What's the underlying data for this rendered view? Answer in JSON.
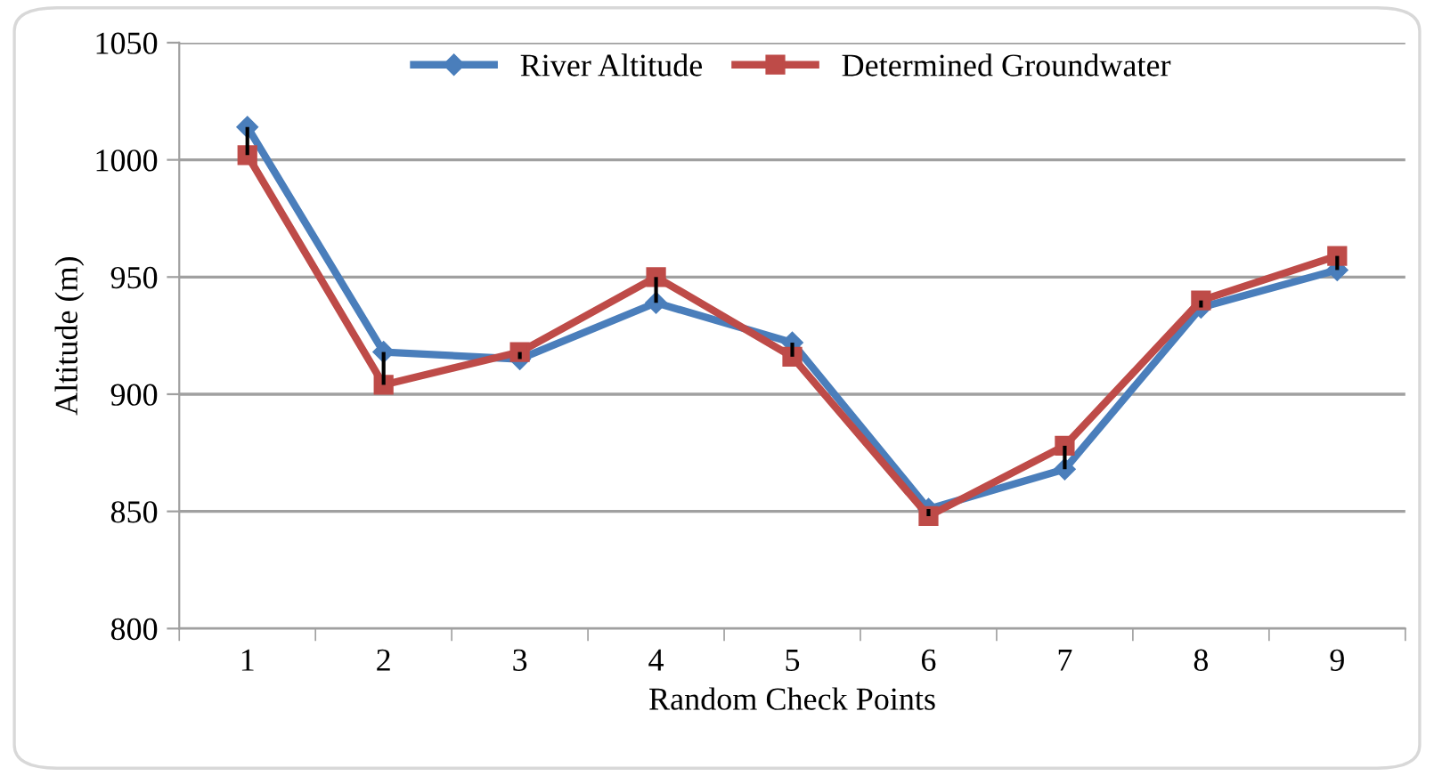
{
  "chart_data": {
    "type": "line",
    "xlabel": "Random Check Points",
    "ylabel": "Altitude (m)",
    "categories": [
      "1",
      "2",
      "3",
      "4",
      "5",
      "6",
      "7",
      "8",
      "9"
    ],
    "series": [
      {
        "name": "River Altitude",
        "color": "#4a7ebb",
        "marker": "diamond",
        "values": [
          1014,
          918,
          915,
          939,
          922,
          851,
          868,
          937,
          953
        ],
        "errors": [
          [
            1002,
            1014
          ],
          [
            904,
            918
          ],
          [
            915,
            918
          ],
          [
            939,
            950
          ],
          [
            916,
            922
          ],
          [
            848,
            851
          ],
          [
            868,
            878
          ],
          [
            937,
            940
          ],
          [
            953,
            959
          ]
        ]
      },
      {
        "name": "Determined Groundwater",
        "color": "#be4b48",
        "marker": "square",
        "values": [
          1002,
          904,
          918,
          950,
          916,
          848,
          878,
          940,
          959
        ]
      }
    ],
    "ylim": [
      800,
      1050
    ],
    "yticks": [
      800,
      850,
      900,
      950,
      1000,
      1050
    ],
    "grid": "y",
    "legend": "top"
  }
}
